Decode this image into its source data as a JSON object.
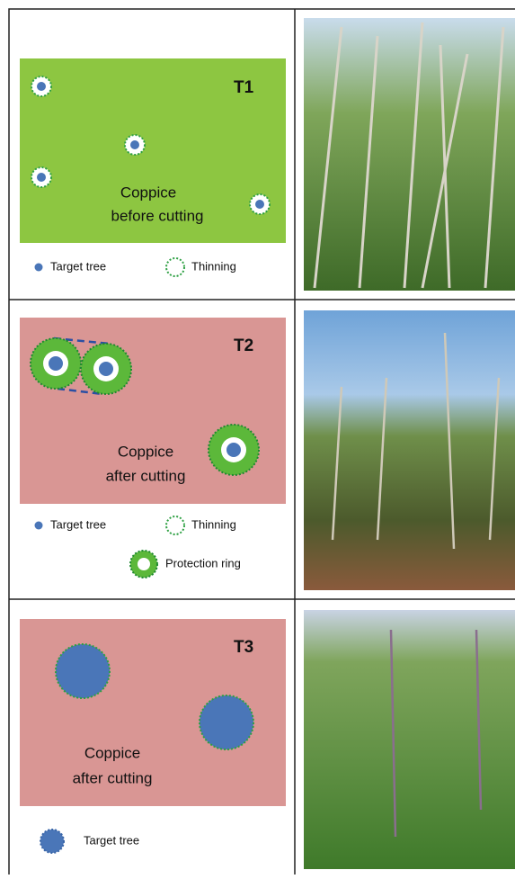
{
  "rows": [
    {
      "label": "T1",
      "panel_text": [
        "Coppice",
        "before cutting"
      ],
      "legend": [
        "Target tree",
        "Thinning"
      ]
    },
    {
      "label": "T2",
      "panel_text": [
        "Coppice",
        "after cutting"
      ],
      "legend": [
        "Target tree",
        "Thinning",
        "Protection ring"
      ]
    },
    {
      "label": "T3",
      "panel_text": [
        "Coppice",
        "after cutting"
      ],
      "legend": [
        "Target tree"
      ]
    }
  ]
}
